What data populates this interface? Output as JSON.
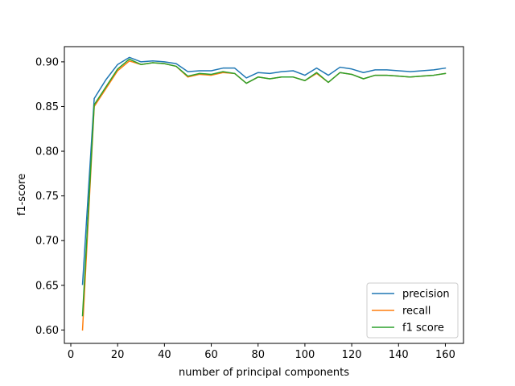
{
  "chart_data": {
    "type": "line",
    "xlabel": "number of principal components",
    "ylabel": "f1-score",
    "xlim": [
      -2.75,
      167.75
    ],
    "ylim": [
      0.585,
      0.917
    ],
    "xticks": [
      0,
      20,
      40,
      60,
      80,
      100,
      120,
      140,
      160
    ],
    "yticks": [
      0.6,
      0.65,
      0.7,
      0.75,
      0.8,
      0.85,
      0.9
    ],
    "ytick_labels": [
      "0.60",
      "0.65",
      "0.70",
      "0.75",
      "0.80",
      "0.85",
      "0.90"
    ],
    "xtick_labels": [
      "0",
      "20",
      "40",
      "60",
      "80",
      "100",
      "120",
      "140",
      "160"
    ],
    "legend_position": "lower-right",
    "grid": false,
    "x": [
      5,
      10,
      15,
      20,
      25,
      30,
      35,
      40,
      45,
      50,
      55,
      60,
      65,
      70,
      75,
      80,
      85,
      90,
      95,
      100,
      105,
      110,
      115,
      120,
      125,
      130,
      135,
      140,
      145,
      150,
      155,
      160
    ],
    "series": [
      {
        "name": "precision",
        "color": "#1f77b4",
        "values": [
          0.651,
          0.859,
          0.88,
          0.897,
          0.905,
          0.9,
          0.901,
          0.9,
          0.898,
          0.889,
          0.89,
          0.89,
          0.893,
          0.893,
          0.882,
          0.888,
          0.887,
          0.889,
          0.89,
          0.885,
          0.893,
          0.885,
          0.894,
          0.892,
          0.888,
          0.891,
          0.891,
          0.89,
          0.889,
          0.89,
          0.891,
          0.893
        ]
      },
      {
        "name": "recall",
        "color": "#ff7f0e",
        "values": [
          0.6,
          0.85,
          0.87,
          0.89,
          0.901,
          0.897,
          0.899,
          0.898,
          0.895,
          0.883,
          0.886,
          0.885,
          0.888,
          0.887,
          0.876,
          0.883,
          0.881,
          0.883,
          0.883,
          0.879,
          0.887,
          0.877,
          0.888,
          0.886,
          0.881,
          0.885,
          0.885,
          0.884,
          0.883,
          0.884,
          0.885,
          0.887
        ]
      },
      {
        "name": "f1 score",
        "color": "#2ca02c",
        "values": [
          0.616,
          0.852,
          0.872,
          0.892,
          0.903,
          0.897,
          0.899,
          0.898,
          0.895,
          0.884,
          0.887,
          0.886,
          0.889,
          0.887,
          0.876,
          0.883,
          0.881,
          0.883,
          0.883,
          0.879,
          0.888,
          0.877,
          0.888,
          0.886,
          0.881,
          0.885,
          0.885,
          0.884,
          0.883,
          0.884,
          0.885,
          0.887
        ]
      }
    ]
  }
}
